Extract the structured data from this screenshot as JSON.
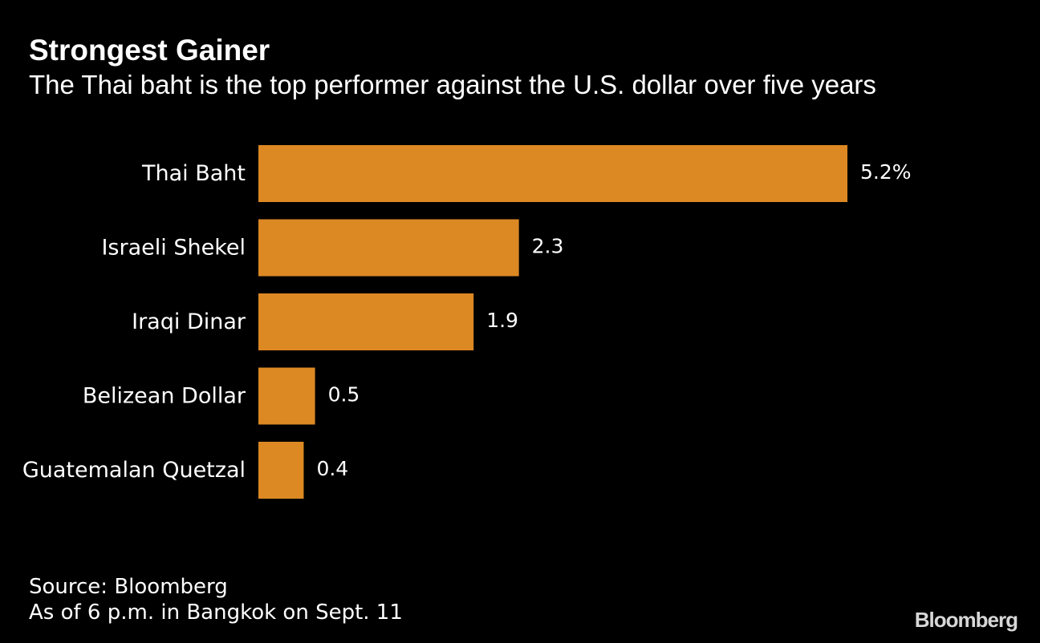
{
  "chart_data": {
    "type": "bar",
    "orientation": "horizontal",
    "title": "Strongest Gainer",
    "subtitle": "The Thai baht is the top performer against the U.S. dollar over five years",
    "categories": [
      "Thai Baht",
      "Israeli Shekel",
      "Iraqi Dinar",
      "Belizean Dollar",
      "Guatemalan Quetzal"
    ],
    "values": [
      5.2,
      2.3,
      1.9,
      0.5,
      0.4
    ],
    "value_labels": [
      "5.2%",
      "2.3",
      "1.9",
      "0.5",
      "0.4"
    ],
    "unit": "%",
    "xlim": [
      0,
      5.2
    ],
    "bar_color": "#DC8823",
    "grid": false,
    "legend": "none"
  },
  "footer": {
    "source": "Source: Bloomberg",
    "note": "As of 6 p.m. in Bangkok on Sept. 11",
    "logo": "Bloomberg"
  }
}
